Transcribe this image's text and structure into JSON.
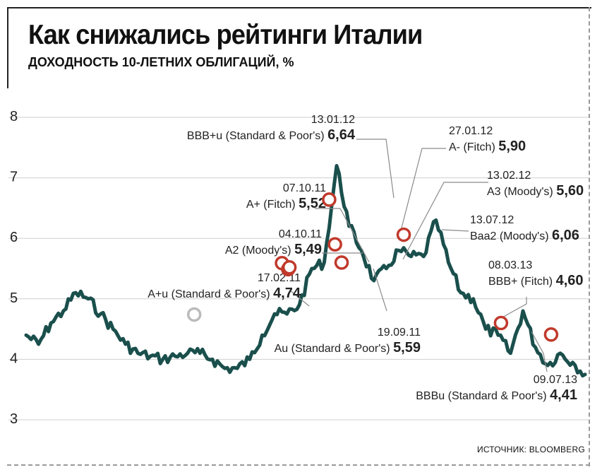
{
  "title": "Как снижались рейтинги Италии",
  "subtitle": "ДОХОДНОСТЬ 10-ЛЕТНИХ ОБЛИГАЦИЙ, %",
  "source": "ИСТОЧНИК: BLOOMBERG",
  "colors": {
    "line": "#1a4f4c",
    "marker_ring": "#c0392b",
    "marker_first": "#bbbbbb",
    "grid": "#cfcfcf",
    "leader": "#8a8a8a"
  },
  "chart_data": {
    "type": "line",
    "title": "Как снижались рейтинги Италии",
    "subtitle": "ДОХОДНОСТЬ 10-ЛЕТНИХ ОБЛИГАЦИЙ, %",
    "xlabel": "",
    "ylabel": "",
    "ylim": [
      3,
      8
    ],
    "yticks": [
      3,
      4,
      5,
      6,
      7,
      8
    ],
    "grid": "horizontal",
    "x_start": "2010-01",
    "x_end": "2013-10",
    "series": [
      {
        "x": [
          "2010-01",
          "2010-02",
          "2010-03",
          "2010-04",
          "2010-05",
          "2010-06",
          "2010-07",
          "2010-08",
          "2010-09",
          "2010-10",
          "2010-11",
          "2010-12",
          "2011-01",
          "2011-02",
          "2011-03",
          "2011-04",
          "2011-05",
          "2011-06",
          "2011-07",
          "2011-08",
          "2011-09",
          "2011-10",
          "2011-11",
          "2011-12",
          "2012-01",
          "2012-02",
          "2012-03",
          "2012-04",
          "2012-05",
          "2012-06",
          "2012-07",
          "2012-08",
          "2012-09",
          "2012-10",
          "2012-11",
          "2012-12",
          "2013-01",
          "2013-02",
          "2013-03",
          "2013-04",
          "2013-05",
          "2013-06",
          "2013-07",
          "2013-08",
          "2013-09",
          "2013-10"
        ],
        "values": [
          4.4,
          4.25,
          4.6,
          4.8,
          5.1,
          5.0,
          4.75,
          4.5,
          4.25,
          4.1,
          4.05,
          4.0,
          4.05,
          4.1,
          4.1,
          4.0,
          3.85,
          3.85,
          4.0,
          4.4,
          4.75,
          4.75,
          4.9,
          5.5,
          5.6,
          7.2,
          6.2,
          5.8,
          5.3,
          5.5,
          5.8,
          5.7,
          5.7,
          6.3,
          5.6,
          5.1,
          5.0,
          4.5,
          4.4,
          4.1,
          4.8,
          4.2,
          3.9,
          4.1,
          3.95,
          3.75
        ]
      }
    ],
    "annotations": [
      {
        "date": "17.02.11",
        "rating": "A+u (Standard & Poor's)",
        "value": "4,74"
      },
      {
        "date": "19.09.11",
        "rating": "Au (Standard & Poor's)",
        "value": "5,59"
      },
      {
        "date": "04.10.11",
        "rating": "A2 (Moody's)",
        "value": "5,49"
      },
      {
        "date": "07.10.11",
        "rating": "A+ (Fitch)",
        "value": "5,52"
      },
      {
        "date": "13.01.12",
        "rating": "BBB+u (Standard & Poor's)",
        "value": "6,64"
      },
      {
        "date": "27.01.12",
        "rating": "A- (Fitch)",
        "value": "5,90"
      },
      {
        "date": "13.02.12",
        "rating": "A3 (Moody's)",
        "value": "5,60"
      },
      {
        "date": "13.07.12",
        "rating": "Baa2 (Moody's)",
        "value": "6,06"
      },
      {
        "date": "08.03.13",
        "rating": "BBB+ (Fitch)",
        "value": "4,60"
      },
      {
        "date": "09.07.13",
        "rating": "BBBu (Standard & Poor's)",
        "value": "4,41"
      }
    ]
  }
}
